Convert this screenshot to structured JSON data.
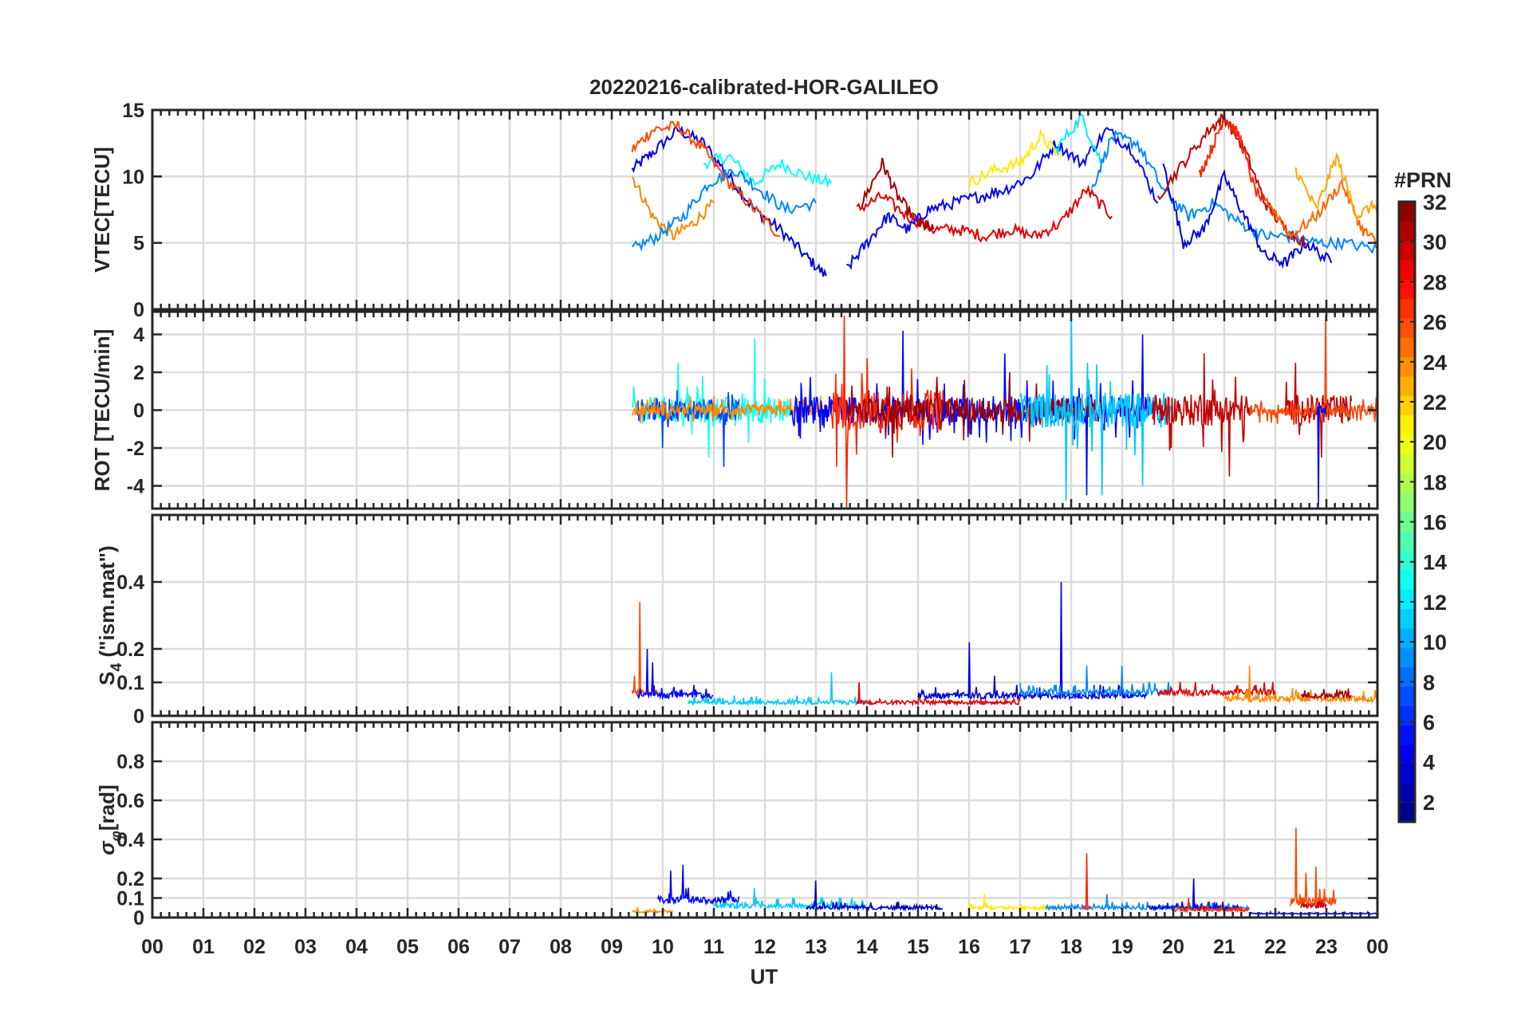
{
  "chart_data": {
    "type": "line",
    "title": "20220216-calibrated-HOR-GALILEO",
    "xlabel": "UT",
    "x_unit": "hours",
    "xlim": [
      0,
      24
    ],
    "x_tick_values": [
      0,
      1,
      2,
      3,
      4,
      5,
      6,
      7,
      8,
      9,
      10,
      11,
      12,
      13,
      14,
      15,
      16,
      17,
      18,
      19,
      20,
      21,
      22,
      23,
      24
    ],
    "x_tick_labels": [
      "00",
      "01",
      "02",
      "03",
      "04",
      "05",
      "06",
      "07",
      "08",
      "09",
      "10",
      "11",
      "12",
      "13",
      "14",
      "15",
      "16",
      "17",
      "18",
      "19",
      "20",
      "21",
      "22",
      "23",
      "00"
    ],
    "grid": true,
    "data_start_hour": 9.4,
    "panels": [
      {
        "ylabel": "VTEC[TECU]",
        "ylim": [
          0,
          15
        ],
        "ytick_values": [
          0,
          5,
          10,
          15
        ],
        "ytick_labels": [
          "0",
          "5",
          "10",
          "15"
        ],
        "series": [
          {
            "prn": 4,
            "x": [
              9.4,
              9.8,
              10.3,
              10.8,
              11.3,
              11.8,
              12.3,
              12.8,
              13.2
            ],
            "values": [
              10.5,
              11.8,
              13.5,
              12.5,
              10.0,
              7.5,
              6.0,
              4.0,
              2.5
            ]
          },
          {
            "prn": 13,
            "x": [
              10.8,
              11.3,
              11.8,
              12.3,
              12.8,
              13.3
            ],
            "values": [
              11.0,
              11.5,
              9.5,
              11.0,
              10.0,
              9.5
            ]
          },
          {
            "prn": 26,
            "x": [
              9.4,
              9.8,
              10.3,
              10.8,
              11.3,
              11.8,
              12.3
            ],
            "values": [
              12.0,
              13.5,
              13.8,
              12.0,
              9.5,
              7.5,
              5.5
            ]
          },
          {
            "prn": 24,
            "x": [
              9.4,
              9.8,
              10.2,
              10.6,
              11.0
            ],
            "values": [
              10.0,
              7.0,
              5.5,
              6.5,
              8.0
            ]
          },
          {
            "prn": 9,
            "x": [
              9.4,
              9.9,
              10.4,
              10.9,
              11.4,
              11.9,
              12.4,
              13.0
            ],
            "values": [
              4.5,
              5.5,
              7.0,
              9.5,
              10.5,
              9.0,
              7.5,
              8.0
            ]
          },
          {
            "prn": 29,
            "x": [
              13.8,
              14.3,
              14.8,
              15.3,
              15.8,
              16.3,
              16.8,
              17.3,
              17.8,
              18.3,
              18.8
            ],
            "values": [
              7.5,
              8.5,
              7.0,
              6.0,
              6.0,
              5.5,
              6.0,
              5.5,
              6.5,
              9.0,
              7.0
            ]
          },
          {
            "prn": 31,
            "x": [
              13.9,
              14.3,
              14.6,
              15.0,
              15.3
            ],
            "values": [
              8.0,
              11.0,
              8.5,
              6.5,
              6.0
            ]
          },
          {
            "prn": 5,
            "x": [
              13.6,
              14.0,
              14.4,
              14.8,
              15.2,
              15.7,
              16.2,
              16.7,
              17.2,
              17.7,
              18.2,
              18.7,
              19.2,
              19.7
            ],
            "values": [
              3.0,
              5.0,
              7.0,
              6.0,
              7.5,
              8.0,
              8.5,
              9.0,
              10.0,
              12.5,
              11.0,
              13.5,
              12.0,
              8.0
            ]
          },
          {
            "prn": 21,
            "x": [
              16.0,
              16.5,
              17.0,
              17.4,
              17.8
            ],
            "values": [
              9.5,
              10.5,
              11.0,
              13.0,
              11.5
            ]
          },
          {
            "prn": 12,
            "x": [
              17.7,
              18.2,
              18.6
            ],
            "values": [
              12.0,
              14.5,
              11.0
            ]
          },
          {
            "prn": 9,
            "x": [
              18.4,
              18.8,
              19.3,
              19.8,
              20.3,
              20.8,
              21.3,
              21.8,
              22.3,
              22.8,
              23.3,
              24.0
            ],
            "values": [
              9.0,
              13.0,
              12.5,
              9.0,
              7.0,
              8.0,
              6.5,
              5.5,
              5.5,
              5.0,
              5.0,
              4.5
            ]
          },
          {
            "prn": 4,
            "x": [
              19.8,
              20.2,
              20.6,
              21.0,
              21.4,
              21.8,
              22.2,
              22.6,
              23.1
            ],
            "values": [
              11.0,
              5.0,
              6.0,
              10.0,
              7.0,
              4.0,
              3.5,
              5.0,
              3.5
            ]
          },
          {
            "prn": 30,
            "x": [
              19.7,
              20.2,
              20.7,
              21.0,
              21.4,
              21.8,
              22.2,
              22.6
            ],
            "values": [
              8.5,
              11.0,
              13.5,
              14.5,
              12.0,
              8.0,
              6.0,
              5.0
            ]
          },
          {
            "prn": 27,
            "x": [
              20.5,
              20.8,
              21.0,
              21.3,
              21.6,
              22.0
            ],
            "values": [
              10.0,
              12.5,
              14.5,
              13.0,
              9.0,
              7.0
            ]
          },
          {
            "prn": 25,
            "x": [
              21.8,
              22.3,
              22.8,
              23.3,
              23.7,
              24.0
            ],
            "values": [
              8.5,
              5.5,
              7.0,
              9.5,
              6.0,
              5.0
            ]
          },
          {
            "prn": 23,
            "x": [
              22.4,
              22.8,
              23.2,
              23.6,
              24.0
            ],
            "values": [
              10.5,
              7.5,
              11.5,
              7.0,
              8.0
            ]
          }
        ]
      },
      {
        "ylabel": "ROT [TECU/min]",
        "ylim": [
          -5.2,
          5.2
        ],
        "ytick_values": [
          -4,
          -2,
          0,
          2,
          4
        ],
        "ytick_labels": [
          "-4",
          "-2",
          "0",
          "2",
          "4"
        ],
        "noise_series": [
          {
            "prn": 13,
            "start": 9.4,
            "end": 12.5,
            "amp": 1.2,
            "spikes": [
              [
                10.3,
                2.5
              ],
              [
                10.9,
                -2.5
              ],
              [
                11.8,
                3.8
              ]
            ]
          },
          {
            "prn": 7,
            "start": 9.5,
            "end": 11.5,
            "amp": 1.0,
            "spikes": [
              [
                10.0,
                -2.0
              ],
              [
                11.2,
                -3.0
              ]
            ]
          },
          {
            "prn": 24,
            "start": 9.4,
            "end": 13.5,
            "amp": 0.5,
            "spikes": []
          },
          {
            "prn": 5,
            "start": 12.5,
            "end": 19.8,
            "amp": 1.2,
            "spikes": [
              [
                14.7,
                4.2
              ],
              [
                16.7,
                3.0
              ],
              [
                18.3,
                -4.5
              ],
              [
                19.4,
                4.0
              ],
              [
                19.9,
                -2.0
              ]
            ]
          },
          {
            "prn": 27,
            "start": 13.3,
            "end": 15.5,
            "amp": 1.8,
            "spikes": [
              [
                13.55,
                5.0
              ],
              [
                13.6,
                -5.2
              ],
              [
                13.4,
                -3.0
              ]
            ]
          },
          {
            "prn": 31,
            "start": 13.6,
            "end": 18.5,
            "amp": 1.1,
            "spikes": [
              [
                14.5,
                -2.5
              ],
              [
                16.8,
                2.0
              ]
            ]
          },
          {
            "prn": 11,
            "start": 17.0,
            "end": 20.0,
            "amp": 1.6,
            "spikes": [
              [
                18.0,
                5.2
              ],
              [
                18.6,
                -4.5
              ],
              [
                19.4,
                -4.0
              ],
              [
                17.9,
                -4.8
              ]
            ]
          },
          {
            "prn": 30,
            "start": 19.6,
            "end": 21.5,
            "amp": 1.4,
            "spikes": [
              [
                20.6,
                3.0
              ],
              [
                21.1,
                -3.5
              ]
            ]
          },
          {
            "prn": 30,
            "start": 22.2,
            "end": 23.5,
            "amp": 1.3,
            "spikes": [
              [
                22.4,
                2.5
              ],
              [
                22.9,
                -2.5
              ]
            ]
          },
          {
            "prn": 26,
            "start": 21.5,
            "end": 24.0,
            "amp": 0.5,
            "spikes": [
              [
                22.98,
                5.0
              ]
            ]
          },
          {
            "prn": 4,
            "start": 22.8,
            "end": 23.0,
            "amp": 0.5,
            "spikes": [
              [
                22.85,
                -5.0
              ]
            ]
          }
        ]
      },
      {
        "ylabel": "S4 (\"ism.mat\")",
        "ylabel_main": "S",
        "ylabel_sub": "4",
        "ylabel_rest": " (\"ism.mat\")",
        "ylim": [
          0,
          0.6
        ],
        "ytick_values": [
          0,
          0.1,
          0.2,
          0.4
        ],
        "ytick_labels": [
          "0",
          "0.1",
          "0.2",
          "0.4"
        ],
        "noise_series": [
          {
            "prn": 26,
            "start": 9.4,
            "end": 10.0,
            "base": 0.07,
            "amp": 0.03,
            "spikes": [
              [
                9.55,
                0.34
              ],
              [
                9.45,
                0.12
              ]
            ]
          },
          {
            "prn": 5,
            "start": 9.5,
            "end": 11.0,
            "base": 0.06,
            "amp": 0.03,
            "spikes": [
              [
                9.7,
                0.2
              ],
              [
                9.8,
                0.16
              ]
            ]
          },
          {
            "prn": 11,
            "start": 10.5,
            "end": 14.0,
            "base": 0.04,
            "amp": 0.02,
            "spikes": [
              [
                13.3,
                0.13
              ]
            ]
          },
          {
            "prn": 29,
            "start": 13.8,
            "end": 17.0,
            "base": 0.04,
            "amp": 0.02,
            "spikes": [
              [
                13.85,
                0.1
              ]
            ]
          },
          {
            "prn": 4,
            "start": 15.0,
            "end": 19.5,
            "base": 0.06,
            "amp": 0.03,
            "spikes": [
              [
                16.0,
                0.22
              ],
              [
                17.8,
                0.4
              ],
              [
                16.5,
                0.12
              ]
            ]
          },
          {
            "prn": 9,
            "start": 17.0,
            "end": 20.0,
            "base": 0.07,
            "amp": 0.03,
            "spikes": [
              [
                18.3,
                0.15
              ],
              [
                19.0,
                0.15
              ]
            ]
          },
          {
            "prn": 29,
            "start": 19.7,
            "end": 22.0,
            "base": 0.07,
            "amp": 0.03,
            "spikes": []
          },
          {
            "prn": 24,
            "start": 21.0,
            "end": 24.0,
            "base": 0.05,
            "amp": 0.03,
            "spikes": [
              [
                21.5,
                0.15
              ]
            ]
          },
          {
            "prn": 31,
            "start": 22.5,
            "end": 23.5,
            "base": 0.06,
            "amp": 0.02,
            "spikes": []
          }
        ]
      },
      {
        "ylabel": "σφ[rad]",
        "ylabel_main": "σ",
        "ylabel_sub": "φ",
        "ylabel_rest": "[rad]",
        "ylim": [
          0,
          1.0
        ],
        "ytick_values": [
          0,
          0.1,
          0.2,
          0.4,
          0.6,
          0.8
        ],
        "ytick_labels": [
          "0",
          "0.1",
          "0.2",
          "0.4",
          "0.6",
          "0.8"
        ],
        "noise_series": [
          {
            "prn": 24,
            "start": 9.4,
            "end": 10.2,
            "base": 0.03,
            "amp": 0.02,
            "spikes": []
          },
          {
            "prn": 5,
            "start": 9.9,
            "end": 11.5,
            "base": 0.09,
            "amp": 0.06,
            "spikes": [
              [
                10.4,
                0.27
              ],
              [
                10.15,
                0.24
              ]
            ]
          },
          {
            "prn": 11,
            "start": 11.0,
            "end": 14.0,
            "base": 0.06,
            "amp": 0.04,
            "spikes": [
              [
                11.8,
                0.15
              ]
            ]
          },
          {
            "prn": 3,
            "start": 12.8,
            "end": 15.5,
            "base": 0.05,
            "amp": 0.03,
            "spikes": [
              [
                13.0,
                0.19
              ]
            ]
          },
          {
            "prn": 21,
            "start": 16.0,
            "end": 17.8,
            "base": 0.05,
            "amp": 0.03,
            "spikes": [
              [
                16.3,
                0.12
              ]
            ]
          },
          {
            "prn": 9,
            "start": 17.5,
            "end": 21.5,
            "base": 0.05,
            "amp": 0.03,
            "spikes": [
              [
                18.7,
                0.12
              ]
            ]
          },
          {
            "prn": 27,
            "start": 18.2,
            "end": 18.4,
            "base": 0.05,
            "amp": 0.02,
            "spikes": [
              [
                18.3,
                0.33
              ]
            ]
          },
          {
            "prn": 4,
            "start": 19.5,
            "end": 21.3,
            "base": 0.05,
            "amp": 0.03,
            "spikes": [
              [
                20.4,
                0.2
              ]
            ]
          },
          {
            "prn": 27,
            "start": 20.0,
            "end": 21.5,
            "base": 0.04,
            "amp": 0.03,
            "spikes": [
              [
                20.3,
                0.1
              ]
            ]
          },
          {
            "prn": 26,
            "start": 22.3,
            "end": 23.2,
            "base": 0.08,
            "amp": 0.08,
            "spikes": [
              [
                22.4,
                0.46
              ],
              [
                22.8,
                0.26
              ],
              [
                22.6,
                0.23
              ]
            ]
          },
          {
            "prn": 30,
            "start": 22.5,
            "end": 23.0,
            "base": 0.06,
            "amp": 0.04,
            "spikes": []
          },
          {
            "prn": 5,
            "start": 21.5,
            "end": 24.0,
            "base": 0.02,
            "amp": 0.01,
            "spikes": []
          }
        ]
      }
    ],
    "colorbar": {
      "title": "#PRN",
      "range": [
        1,
        32
      ],
      "tick_values": [
        2,
        4,
        6,
        8,
        10,
        12,
        14,
        16,
        18,
        20,
        22,
        24,
        26,
        28,
        30,
        32
      ],
      "tick_labels": [
        "2",
        "4",
        "6",
        "8",
        "10",
        "12",
        "14",
        "16",
        "18",
        "20",
        "22",
        "24",
        "26",
        "28",
        "30",
        "32"
      ],
      "colormap": "jet",
      "jet_stops": [
        "#00007F",
        "#0000FF",
        "#007FFF",
        "#00FFFF",
        "#7FFF7F",
        "#FFFF00",
        "#FF7F00",
        "#FF0000",
        "#7F0000"
      ]
    }
  }
}
